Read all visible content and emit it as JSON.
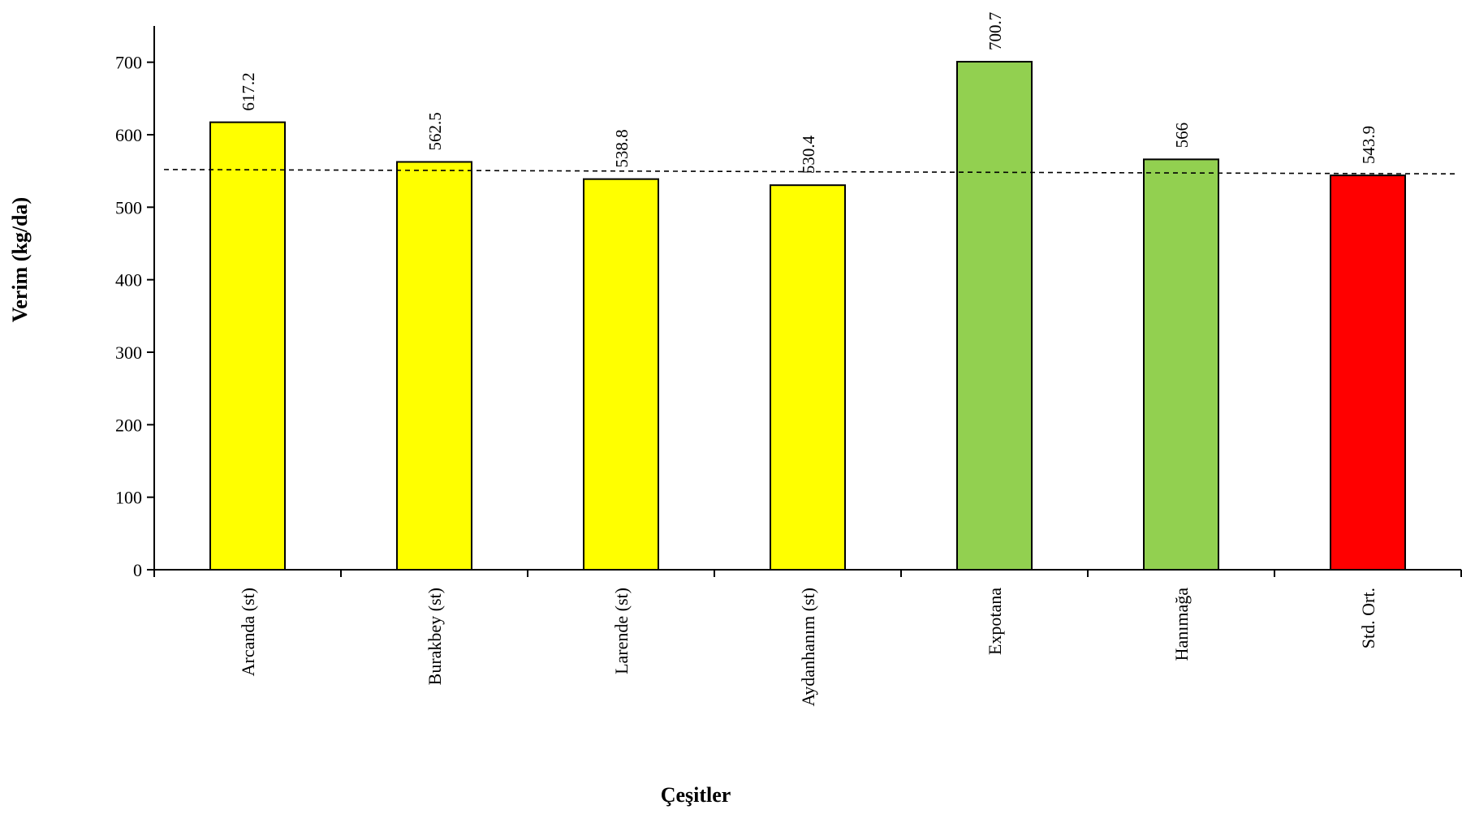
{
  "chart_data": {
    "type": "bar",
    "xlabel": "Çeşitler",
    "ylabel": "Verim (kg/da)",
    "categories": [
      "Arcanda (st)",
      "Burakbey (st)",
      "Larende (st)",
      "Aydanhanım (st)",
      "Expotana",
      "Hanımağa",
      "Std. Ort."
    ],
    "values": [
      617.2,
      562.5,
      538.8,
      530.4,
      700.7,
      566,
      543.9
    ],
    "data_labels": [
      "617.2",
      "562.5",
      "538.8",
      "530.4",
      "700.7",
      "566",
      "543.9"
    ],
    "bar_colors": [
      "#ffff00",
      "#ffff00",
      "#ffff00",
      "#ffff00",
      "#92d050",
      "#92d050",
      "#ff0000"
    ],
    "ylim": [
      0,
      750
    ],
    "yticks": [
      0,
      100,
      200,
      300,
      400,
      500,
      600,
      700
    ],
    "reference_line": {
      "style": "dashed",
      "from": 552,
      "to": 546
    },
    "grid": false,
    "legend": "none"
  }
}
